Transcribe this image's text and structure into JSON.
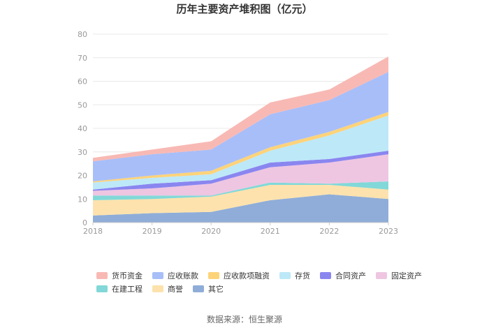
{
  "chart_data": {
    "type": "area",
    "stacked": true,
    "title": "历年主要资产堆积图（亿元）",
    "source": "数据来源：恒生聚源",
    "x": [
      "2018",
      "2019",
      "2020",
      "2021",
      "2022",
      "2023"
    ],
    "ylim": [
      0,
      80
    ],
    "yticks": [
      0,
      10,
      20,
      30,
      40,
      50,
      60,
      70,
      80
    ],
    "grid": true,
    "legend_position": "bottom",
    "series": [
      {
        "name": "其它",
        "color": "#8fadd8",
        "values": [
          3.0,
          4.0,
          4.5,
          9.5,
          12.0,
          10.0
        ]
      },
      {
        "name": "商誉",
        "color": "#fde2ad",
        "values": [
          6.5,
          6.0,
          6.5,
          6.5,
          4.0,
          4.0
        ]
      },
      {
        "name": "在建工程",
        "color": "#82d8d8",
        "values": [
          2.0,
          1.5,
          0.5,
          1.0,
          0.5,
          3.5
        ]
      },
      {
        "name": "固定资产",
        "color": "#eec6e2",
        "values": [
          2.0,
          3.0,
          5.0,
          6.5,
          9.0,
          11.5
        ]
      },
      {
        "name": "合同资产",
        "color": "#8a86f0",
        "values": [
          0.5,
          2.0,
          1.5,
          2.0,
          1.5,
          1.5
        ]
      },
      {
        "name": "存货",
        "color": "#bde8f8",
        "values": [
          3.0,
          2.5,
          2.5,
          5.0,
          10.0,
          15.0
        ]
      },
      {
        "name": "应收款项融资",
        "color": "#fdd37a",
        "values": [
          0.5,
          1.0,
          1.5,
          1.5,
          1.5,
          1.5
        ]
      },
      {
        "name": "应收账款",
        "color": "#a8bef8",
        "values": [
          8.5,
          9.0,
          9.0,
          14.0,
          13.5,
          17.0
        ]
      },
      {
        "name": "货币资金",
        "color": "#f8b9b4",
        "values": [
          1.5,
          2.0,
          3.5,
          5.0,
          4.5,
          6.5
        ]
      }
    ],
    "legend_order": [
      "货币资金",
      "应收账款",
      "应收款项融资",
      "存货",
      "合同资产",
      "固定资产",
      "在建工程",
      "商誉",
      "其它"
    ]
  }
}
